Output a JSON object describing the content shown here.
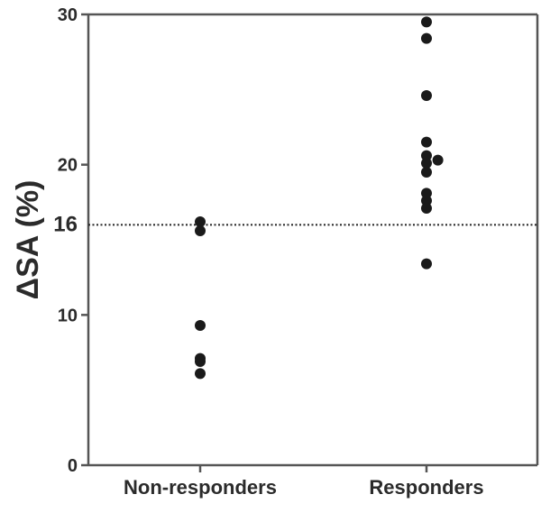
{
  "chart_data": {
    "type": "scatter",
    "ylabel": "ΔSA (%)",
    "ylim": [
      0,
      30
    ],
    "yticks": [
      "0",
      "10",
      "16",
      "20",
      "30"
    ],
    "categories": [
      "Non-responders",
      "Responders"
    ],
    "threshold": {
      "value": 16,
      "label": "16",
      "style": "dotted"
    },
    "grid": false,
    "legend": "none",
    "marker_color": "#1a1a1a",
    "series": [
      {
        "category": "Non-responders",
        "points": [
          {
            "x": 0,
            "y": 16.2
          },
          {
            "x": 0,
            "y": 15.6
          },
          {
            "x": 0,
            "y": 9.3
          },
          {
            "x": 0,
            "y": 7.1
          },
          {
            "x": 0,
            "y": 6.9
          },
          {
            "x": 0,
            "y": 6.1
          }
        ]
      },
      {
        "category": "Responders",
        "points": [
          {
            "x": 0,
            "y": 29.5
          },
          {
            "x": 0,
            "y": 28.4
          },
          {
            "x": 0,
            "y": 24.6
          },
          {
            "x": 0,
            "y": 21.5
          },
          {
            "x": 0,
            "y": 20.6
          },
          {
            "x": 0,
            "y": 20.1
          },
          {
            "x": 0.9,
            "y": 20.3
          },
          {
            "x": 0,
            "y": 19.5
          },
          {
            "x": 0,
            "y": 18.1
          },
          {
            "x": 0,
            "y": 17.6
          },
          {
            "x": 0,
            "y": 17.1
          },
          {
            "x": 0,
            "y": 13.4
          }
        ]
      }
    ]
  }
}
